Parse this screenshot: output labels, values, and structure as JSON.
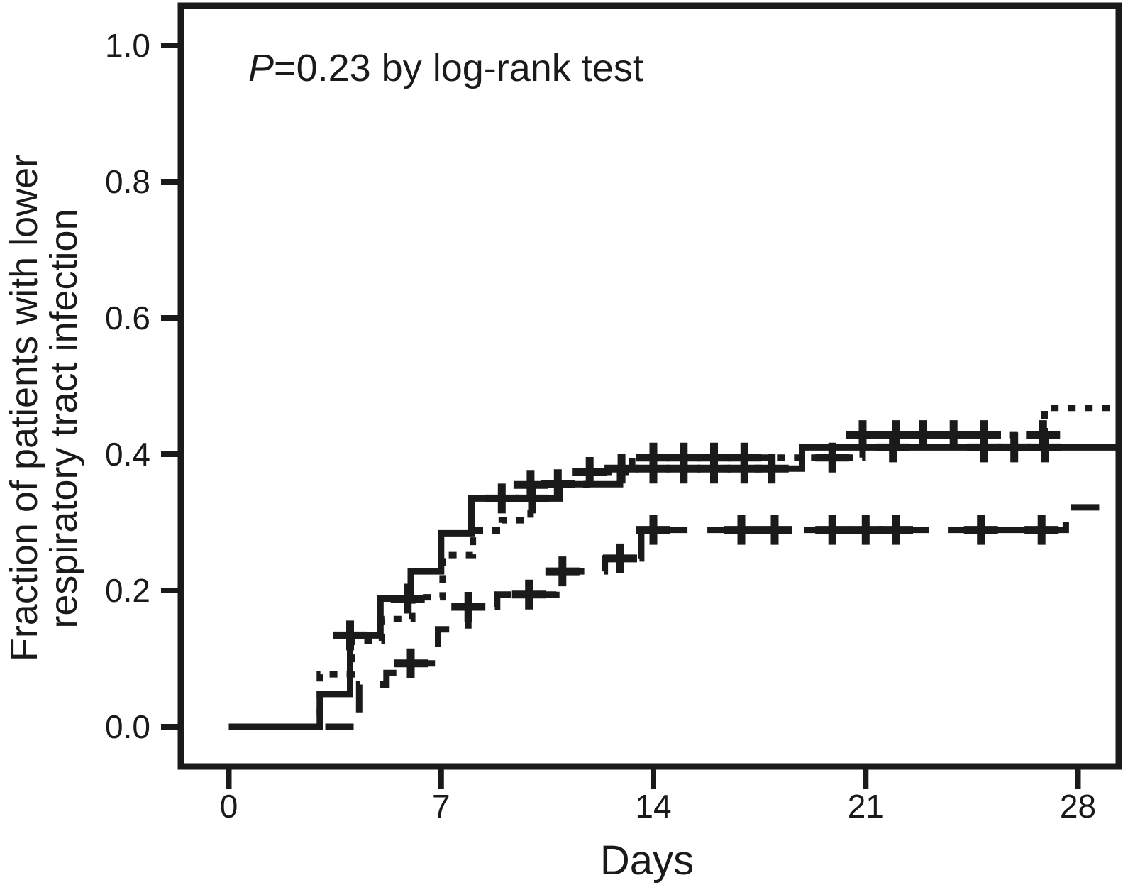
{
  "figure": {
    "annotation": {
      "prefix": "P",
      "rest": "=0.23 by log-rank test"
    },
    "xlabel": "Days",
    "ylabel_line1": "Fraction of patients with lower",
    "ylabel_line2": "respiratory tract infection"
  },
  "colors": {
    "ink": "#1a1a1a",
    "background": "#ffffff"
  },
  "chart_data": {
    "type": "line",
    "subtype": "kaplan-meier-step-cumulative-incidence",
    "title": "",
    "annotation": "P=0.23 by log-rank test",
    "xlabel": "Days",
    "ylabel": "Fraction of patients with lower respiratory tract infection",
    "xlim": [
      0,
      29.3
    ],
    "ylim": [
      0,
      1.0
    ],
    "xticks": [
      0,
      7,
      14,
      21,
      28
    ],
    "ytick_labels": [
      "0.0",
      "0.2",
      "0.4",
      "0.6",
      "0.8",
      "1.0"
    ],
    "grid": false,
    "legend": "none",
    "series": [
      {
        "name": "group-solid",
        "line_style": "solid",
        "start": [
          0,
          0
        ],
        "steps": [
          [
            3.0,
            0.048
          ],
          [
            4.0,
            0.134
          ],
          [
            5.0,
            0.188
          ],
          [
            6.0,
            0.228
          ],
          [
            7.0,
            0.284
          ],
          [
            8.0,
            0.335
          ],
          [
            10.9,
            0.356
          ],
          [
            12.9,
            0.379
          ],
          [
            18.9,
            0.41
          ]
        ],
        "end_day": 29.3,
        "final_value": 0.41,
        "censor_marks": [
          [
            4.0,
            0.134
          ],
          [
            5.9,
            0.188
          ],
          [
            9.0,
            0.335
          ],
          [
            10.0,
            0.335
          ],
          [
            10.85,
            0.356
          ],
          [
            12.95,
            0.379
          ],
          [
            14.0,
            0.379
          ],
          [
            15.0,
            0.379
          ],
          [
            16.0,
            0.379
          ],
          [
            17.0,
            0.379
          ],
          [
            17.9,
            0.379
          ],
          [
            21.9,
            0.41
          ],
          [
            24.9,
            0.41
          ],
          [
            25.9,
            0.41
          ],
          [
            26.9,
            0.41
          ]
        ]
      },
      {
        "name": "group-dotted",
        "line_style": "dotted",
        "start": [
          0,
          0
        ],
        "steps": [
          [
            3.0,
            0.077
          ],
          [
            4.05,
            0.126
          ],
          [
            5.05,
            0.158
          ],
          [
            6.05,
            0.19
          ],
          [
            7.05,
            0.252
          ],
          [
            8.05,
            0.288
          ],
          [
            9.0,
            0.303
          ],
          [
            9.95,
            0.355
          ],
          [
            11.8,
            0.374
          ],
          [
            13.3,
            0.395
          ],
          [
            20.9,
            0.428
          ],
          [
            26.9,
            0.468
          ]
        ],
        "end_day": 29.3,
        "final_value": 0.468,
        "censor_marks": [
          [
            9.95,
            0.355
          ],
          [
            11.9,
            0.374
          ],
          [
            14.0,
            0.395
          ],
          [
            15.0,
            0.395
          ],
          [
            16.0,
            0.395
          ],
          [
            17.0,
            0.395
          ],
          [
            19.9,
            0.395
          ],
          [
            20.9,
            0.428
          ],
          [
            22.0,
            0.428
          ],
          [
            22.9,
            0.428
          ],
          [
            23.9,
            0.428
          ],
          [
            24.9,
            0.428
          ],
          [
            26.85,
            0.428
          ]
        ]
      },
      {
        "name": "group-dashed",
        "line_style": "dashed",
        "start": [
          0,
          0
        ],
        "steps": [
          [
            4.3,
            0.062
          ],
          [
            5.2,
            0.079
          ],
          [
            5.85,
            0.093
          ],
          [
            6.9,
            0.143
          ],
          [
            7.9,
            0.176
          ],
          [
            8.85,
            0.194
          ],
          [
            10.8,
            0.228
          ],
          [
            12.4,
            0.247
          ],
          [
            13.6,
            0.289
          ],
          [
            27.6,
            0.322
          ]
        ],
        "end_day": 29.3,
        "final_value": 0.322,
        "censor_marks": [
          [
            6.0,
            0.093
          ],
          [
            7.9,
            0.176
          ],
          [
            9.9,
            0.194
          ],
          [
            11.0,
            0.228
          ],
          [
            12.9,
            0.247
          ],
          [
            14.0,
            0.289
          ],
          [
            16.9,
            0.289
          ],
          [
            18.0,
            0.289
          ],
          [
            19.9,
            0.289
          ],
          [
            21.0,
            0.289
          ],
          [
            22.0,
            0.289
          ],
          [
            24.8,
            0.289
          ],
          [
            26.8,
            0.289
          ]
        ]
      }
    ]
  }
}
